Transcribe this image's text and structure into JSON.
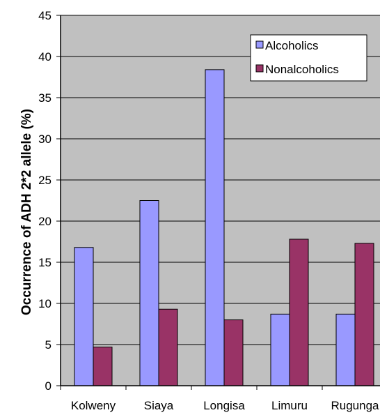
{
  "chart_data": {
    "type": "bar",
    "categories": [
      "Kolweny",
      "Siaya",
      "Longisa",
      "Limuru",
      "Rugunga"
    ],
    "series": [
      {
        "name": "Alcoholics",
        "color": "#9999ff",
        "values": [
          16.8,
          22.5,
          38.4,
          8.7,
          8.7
        ]
      },
      {
        "name": "Nonalcoholics",
        "color": "#993366",
        "values": [
          4.7,
          9.3,
          8.0,
          17.8,
          17.3
        ]
      }
    ],
    "title": "",
    "xlabel": "",
    "ylabel": "Occurrence of ADH 2*2 allele (%)",
    "ylim": [
      0,
      45
    ],
    "yticks": [
      0,
      5,
      10,
      15,
      20,
      25,
      30,
      35,
      40,
      45
    ],
    "grid": true,
    "legend_position": "top-right",
    "plot_background": "#c0c0c0"
  }
}
